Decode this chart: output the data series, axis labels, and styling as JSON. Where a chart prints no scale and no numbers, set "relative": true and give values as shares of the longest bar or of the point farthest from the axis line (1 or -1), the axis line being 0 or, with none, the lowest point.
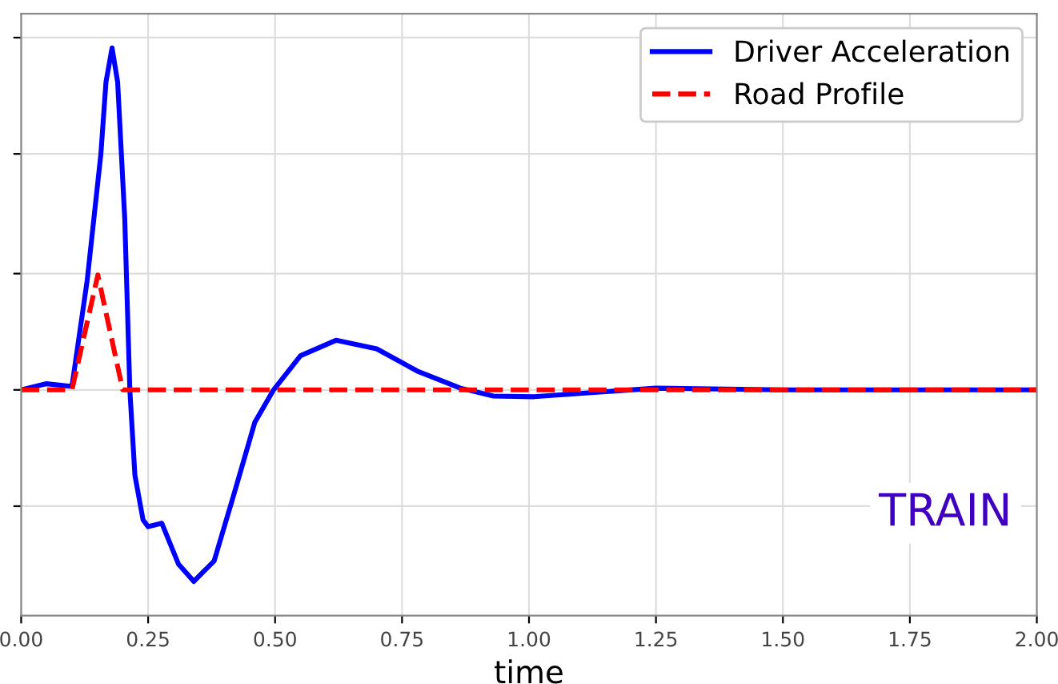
{
  "chart_data": {
    "type": "line",
    "relative": true,
    "xlabel": "time",
    "annotations": [
      "TRAIN"
    ],
    "xlim": [
      0,
      2
    ],
    "xticks": [
      {
        "value": 0,
        "label": "0.00"
      },
      {
        "value": 0.25,
        "label": "0.25"
      },
      {
        "value": 0.5,
        "label": "0.50"
      },
      {
        "value": 0.75,
        "label": "0.75"
      },
      {
        "value": 1,
        "label": "1.00"
      },
      {
        "value": 1.25,
        "label": "1.25"
      },
      {
        "value": 1.5,
        "label": "1.50"
      },
      {
        "value": 1.75,
        "label": "1.75"
      },
      {
        "value": 2,
        "label": "2.00"
      }
    ],
    "grid": true,
    "legend": "top right",
    "tick_labels": "x",
    "series": [
      {
        "name": "Driver Acceleration",
        "color": "#0000ff",
        "line_style": "solid",
        "x": [
          0,
          0.05,
          0.1,
          0.13,
          0.157,
          0.167,
          0.179,
          0.19,
          0.204,
          0.214,
          0.224,
          0.24,
          0.25,
          0.277,
          0.31,
          0.34,
          0.38,
          0.42,
          0.46,
          0.497,
          0.55,
          0.62,
          0.7,
          0.78,
          0.865,
          0.93,
          1.01,
          1.25,
          1.5,
          2.0
        ],
        "values": [
          0,
          0.018,
          0.01,
          0.32,
          0.69,
          0.9,
          1.0,
          0.9,
          0.5,
          0,
          -0.25,
          -0.38,
          -0.4,
          -0.39,
          -0.51,
          -0.56,
          -0.5,
          -0.3,
          -0.095,
          0,
          0.1,
          0.145,
          0.12,
          0.055,
          0.005,
          -0.018,
          -0.02,
          0.005,
          0,
          0
        ]
      },
      {
        "name": "Road Profile",
        "color": "#ff0000",
        "line_style": "dashed",
        "x": [
          0,
          0.1,
          0.151,
          0.2,
          2.0
        ],
        "values": [
          0,
          0,
          0.336,
          0,
          0
        ]
      }
    ]
  }
}
